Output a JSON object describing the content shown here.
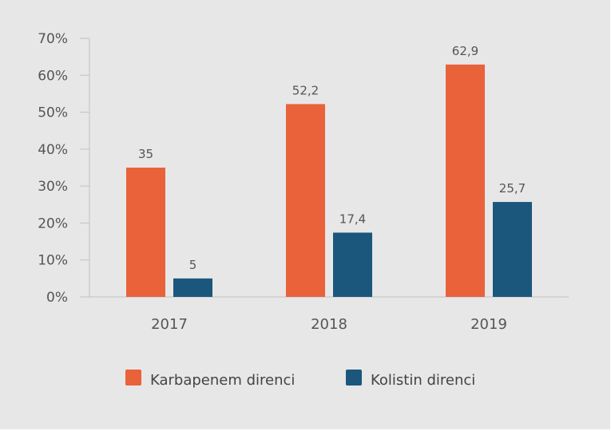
{
  "chart_data": {
    "type": "bar",
    "title": "",
    "xlabel": "",
    "ylabel": "",
    "categories": [
      "2017",
      "2018",
      "2019"
    ],
    "series": [
      {
        "name": "Karbapenem direnci",
        "color": "#e9623a",
        "values": [
          35,
          52.2,
          62.9
        ],
        "labels": [
          "35",
          "52,2",
          "62,9"
        ]
      },
      {
        "name": "Kolistin direnci",
        "color": "#1b577c",
        "values": [
          5,
          17.4,
          25.7
        ],
        "labels": [
          "5",
          "17,4",
          "25,7"
        ]
      }
    ],
    "ylim": [
      0,
      70
    ],
    "yticks": [
      0,
      10,
      20,
      30,
      40,
      50,
      60,
      70
    ],
    "ytick_labels": [
      "0%",
      "10%",
      "20%",
      "30%",
      "40%",
      "50%",
      "60%",
      "70%"
    ],
    "grid": false,
    "legend_position": "bottom"
  },
  "colors": {
    "background": "#e7e7e7",
    "axis": "#c2c2c2"
  }
}
